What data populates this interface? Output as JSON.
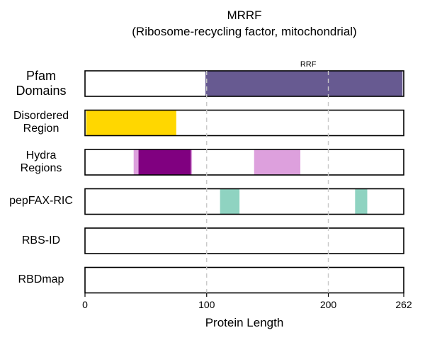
{
  "chart_data": {
    "type": "domain-track",
    "title": "MRRF",
    "subtitle": "(Ribosome-recycling factor, mitochondrial)",
    "xlabel": "Protein Length",
    "xlim": [
      0,
      262
    ],
    "xticks": [
      0,
      100,
      200,
      262
    ],
    "gridlines": [
      100,
      200
    ],
    "tracks": [
      {
        "label": "Pfam\nDomains",
        "segments": [
          {
            "start": 99,
            "end": 261,
            "color": "#675a91",
            "label": "RRF"
          }
        ]
      },
      {
        "label": "Disordered\nRegion",
        "segments": [
          {
            "start": 1,
            "end": 75,
            "color": "#ffd700"
          }
        ]
      },
      {
        "label": "Hydra\nRegions",
        "segments": [
          {
            "start": 40,
            "end": 88,
            "color": "#dda0dd"
          },
          {
            "start": 44,
            "end": 87,
            "color": "#800080"
          },
          {
            "start": 139,
            "end": 177,
            "color": "#dda0dd"
          }
        ]
      },
      {
        "label": "pepFAX-RIC",
        "segments": [
          {
            "start": 111,
            "end": 127,
            "color": "#8fd3c1"
          },
          {
            "start": 222,
            "end": 232,
            "color": "#8fd3c1"
          }
        ]
      },
      {
        "label": "RBS-ID",
        "segments": []
      },
      {
        "label": "RBDmap",
        "segments": []
      }
    ]
  }
}
